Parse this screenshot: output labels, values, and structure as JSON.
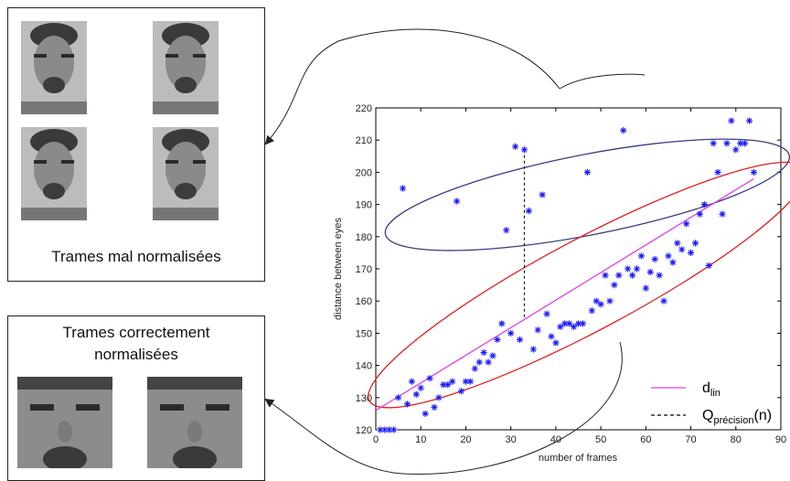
{
  "panels": {
    "bad_caption": "Trames mal normalisées",
    "good_caption_line1": "Trames correctement",
    "good_caption_line2": "normalisées"
  },
  "colors": {
    "series": "#1a1aff",
    "fit_line": "#e040e0",
    "ellipse_outliers": "#3a3a8a",
    "ellipse_inliers": "#e02020",
    "connector": "#222222"
  },
  "chart_data": {
    "type": "scatter",
    "title": "",
    "xlabel": "number of frames",
    "ylabel": "distance between eyes",
    "xlim": [
      0,
      90
    ],
    "ylim": [
      120,
      220
    ],
    "xticks": [
      0,
      10,
      20,
      30,
      40,
      50,
      60,
      70,
      80,
      90
    ],
    "yticks": [
      120,
      130,
      140,
      150,
      160,
      170,
      180,
      190,
      200,
      210,
      220
    ],
    "grid": false,
    "legend_position": "bottom-right",
    "legend": [
      {
        "label": "d",
        "subscript": "lin",
        "style": "solid",
        "color": "#e040e0"
      },
      {
        "label": "Q",
        "subscript": "précision",
        "suffix": "(n)",
        "style": "dashed",
        "color": "#000000"
      }
    ],
    "series": [
      {
        "marker": "asterisk",
        "points": [
          [
            1,
            120
          ],
          [
            2,
            120
          ],
          [
            3,
            120
          ],
          [
            4,
            120
          ],
          [
            5,
            130
          ],
          [
            6,
            195
          ],
          [
            7,
            128
          ],
          [
            8,
            135
          ],
          [
            9,
            131
          ],
          [
            10,
            133
          ],
          [
            11,
            125
          ],
          [
            12,
            136
          ],
          [
            13,
            127
          ],
          [
            14,
            130
          ],
          [
            15,
            134
          ],
          [
            16,
            134
          ],
          [
            17,
            135
          ],
          [
            18,
            191
          ],
          [
            19,
            132
          ],
          [
            20,
            135
          ],
          [
            21,
            135
          ],
          [
            22,
            139
          ],
          [
            23,
            141
          ],
          [
            24,
            144
          ],
          [
            25,
            141
          ],
          [
            26,
            143
          ],
          [
            27,
            148
          ],
          [
            28,
            153
          ],
          [
            29,
            182
          ],
          [
            30,
            150
          ],
          [
            31,
            208
          ],
          [
            32,
            148
          ],
          [
            33,
            207
          ],
          [
            34,
            188
          ],
          [
            35,
            145
          ],
          [
            36,
            151
          ],
          [
            37,
            193
          ],
          [
            38,
            156
          ],
          [
            39,
            149
          ],
          [
            40,
            147
          ],
          [
            41,
            152
          ],
          [
            42,
            153
          ],
          [
            43,
            153
          ],
          [
            44,
            152
          ],
          [
            45,
            153
          ],
          [
            46,
            153
          ],
          [
            47,
            200
          ],
          [
            48,
            157
          ],
          [
            49,
            160
          ],
          [
            50,
            159
          ],
          [
            51,
            168
          ],
          [
            52,
            160
          ],
          [
            53,
            165
          ],
          [
            54,
            168
          ],
          [
            55,
            213
          ],
          [
            56,
            170
          ],
          [
            57,
            168
          ],
          [
            58,
            170
          ],
          [
            59,
            174
          ],
          [
            60,
            164
          ],
          [
            61,
            169
          ],
          [
            62,
            173
          ],
          [
            63,
            168
          ],
          [
            64,
            160
          ],
          [
            65,
            174
          ],
          [
            66,
            172
          ],
          [
            67,
            178
          ],
          [
            68,
            176
          ],
          [
            69,
            184
          ],
          [
            70,
            175
          ],
          [
            71,
            178
          ],
          [
            72,
            187
          ],
          [
            73,
            190
          ],
          [
            74,
            171
          ],
          [
            75,
            209
          ],
          [
            76,
            200
          ],
          [
            77,
            187
          ],
          [
            78,
            209
          ],
          [
            79,
            216
          ],
          [
            80,
            207
          ],
          [
            81,
            209
          ],
          [
            82,
            209
          ],
          [
            83,
            216
          ],
          [
            84,
            200
          ]
        ]
      }
    ],
    "fit_line": {
      "name": "d_lin",
      "x": [
        0,
        84
      ],
      "y": [
        126,
        198
      ]
    },
    "vertical_segment": {
      "x": 33,
      "y": [
        155,
        207
      ]
    }
  }
}
